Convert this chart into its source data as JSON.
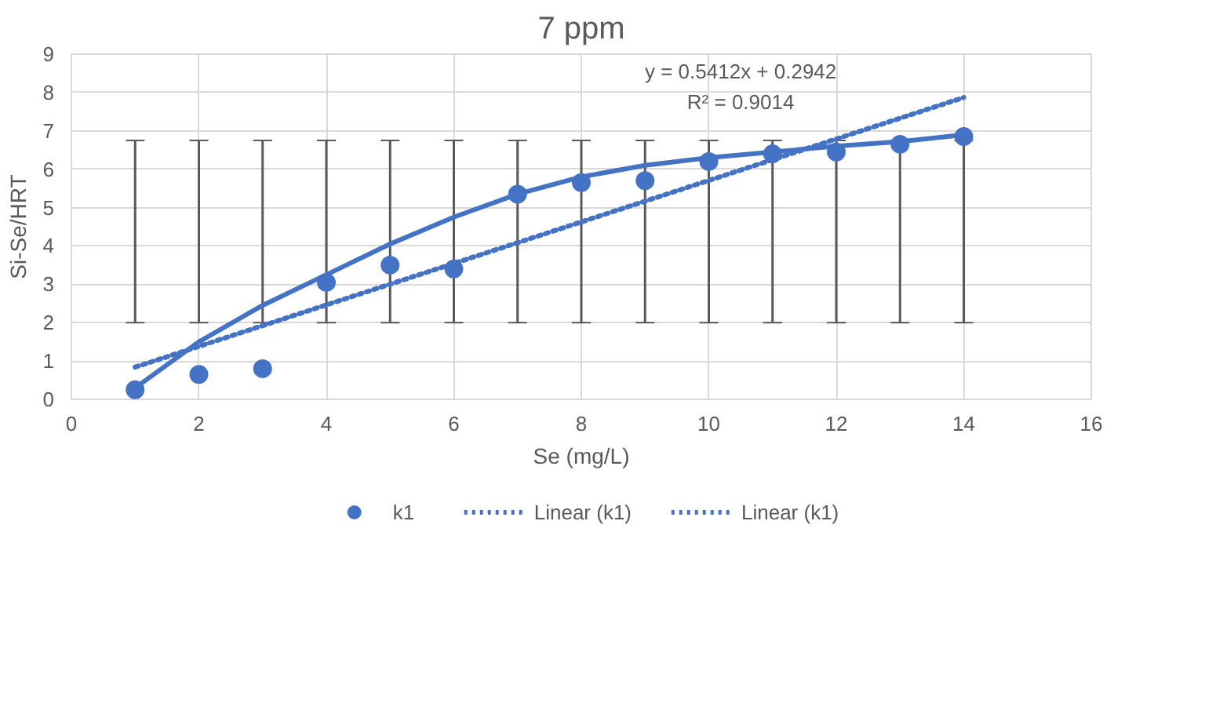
{
  "chart_data": {
    "type": "scatter",
    "title": "7 ppm",
    "xlabel": "Se (mg/L)",
    "ylabel": "Si-Se/HRT",
    "xlim": [
      0,
      16
    ],
    "xticks": [
      0,
      2,
      4,
      6,
      8,
      10,
      12,
      14,
      16
    ],
    "ylim": [
      0,
      9
    ],
    "yticks": [
      0,
      1,
      2,
      3,
      4,
      5,
      6,
      7,
      8,
      9
    ],
    "grid": true,
    "legend": "bottom",
    "annotations": [
      "y = 0.5412x + 0.2942",
      "R² = 0.9014"
    ],
    "series": [
      {
        "name": "k1",
        "marker": "circle",
        "color": "#4472c4",
        "x": [
          1,
          2,
          3,
          4,
          5,
          6,
          7,
          8,
          9,
          10,
          11,
          12,
          13,
          14
        ],
        "values": [
          0.25,
          0.65,
          0.8,
          3.05,
          3.5,
          3.4,
          5.35,
          5.65,
          5.7,
          6.2,
          6.4,
          6.45,
          6.65,
          6.85
        ],
        "errors": [
          [
            2,
            6.75
          ],
          [
            2,
            6.75
          ],
          [
            2,
            6.75
          ],
          [
            2,
            6.75
          ],
          [
            2,
            6.75
          ],
          [
            2,
            6.75
          ],
          [
            2,
            6.75
          ],
          [
            2,
            6.75
          ],
          [
            2,
            6.75
          ],
          [
            2,
            6.75
          ],
          [
            2,
            6.75
          ],
          [
            2,
            6.75
          ],
          [
            2,
            6.75
          ],
          [
            2,
            6.75
          ]
        ]
      },
      {
        "type": "line",
        "line_style": "solid",
        "color": "#4472c4",
        "x": [
          1,
          2,
          3,
          4,
          5,
          6,
          7,
          8,
          9,
          10,
          11,
          12,
          13,
          14
        ],
        "values": [
          0.3,
          1.5,
          2.45,
          3.25,
          4.05,
          4.75,
          5.35,
          5.8,
          6.1,
          6.3,
          6.45,
          6.6,
          6.72,
          6.9
        ]
      },
      {
        "name": "Linear (k1)",
        "type": "line",
        "line_style": "dotted",
        "color": "#4472c4",
        "x": [
          1,
          14
        ],
        "values": [
          0.84,
          7.87
        ]
      },
      {
        "name": "Linear (k1)",
        "type": "line",
        "line_style": "dotted",
        "color": "#4472c4",
        "x": [
          1,
          14
        ],
        "values": [
          0.84,
          7.87
        ]
      }
    ]
  }
}
